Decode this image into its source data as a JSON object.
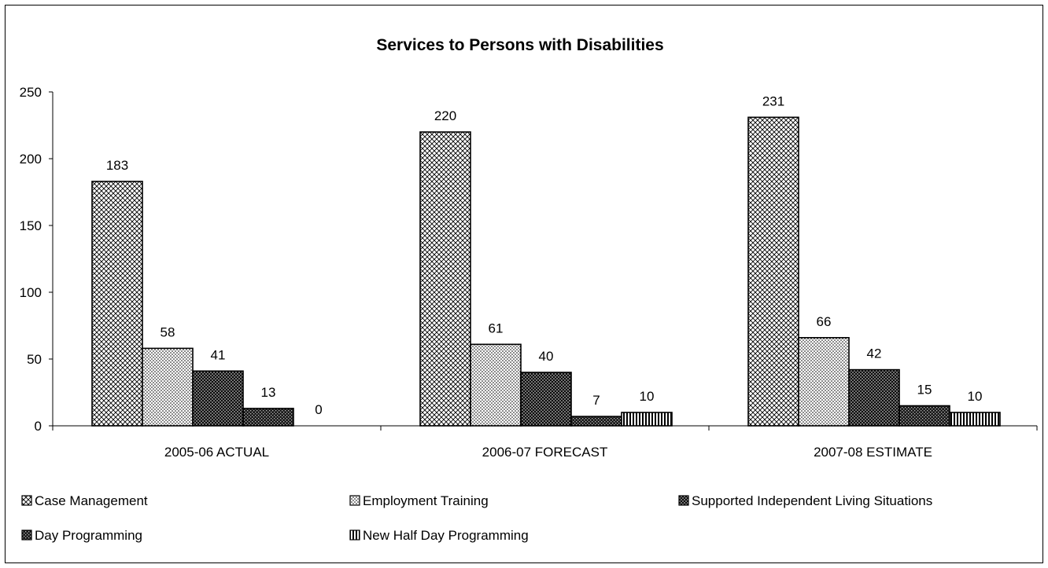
{
  "chart_data": {
    "type": "bar",
    "title": "Services to Persons with Disabilities",
    "xlabel": "",
    "ylabel": "",
    "ylim": [
      0,
      250
    ],
    "yticks": [
      0,
      50,
      100,
      150,
      200,
      250
    ],
    "grid": false,
    "legend_position": "bottom",
    "categories": [
      "2005-06 ACTUAL",
      "2006-07 FORECAST",
      "2007-08 ESTIMATE"
    ],
    "series": [
      {
        "name": "Case Management",
        "values": [
          183,
          220,
          231
        ],
        "pattern": "crosshatch-fine"
      },
      {
        "name": "Employment Training",
        "values": [
          58,
          61,
          66
        ],
        "pattern": "dots"
      },
      {
        "name": "Supported Independent Living Situations",
        "values": [
          41,
          40,
          42
        ],
        "pattern": "crosshatch-dense"
      },
      {
        "name": "Day Programming",
        "values": [
          13,
          7,
          15
        ],
        "pattern": "dark-checker"
      },
      {
        "name": "New Half Day Programming",
        "values": [
          0,
          10,
          10
        ],
        "pattern": "vertical-lines"
      }
    ]
  }
}
